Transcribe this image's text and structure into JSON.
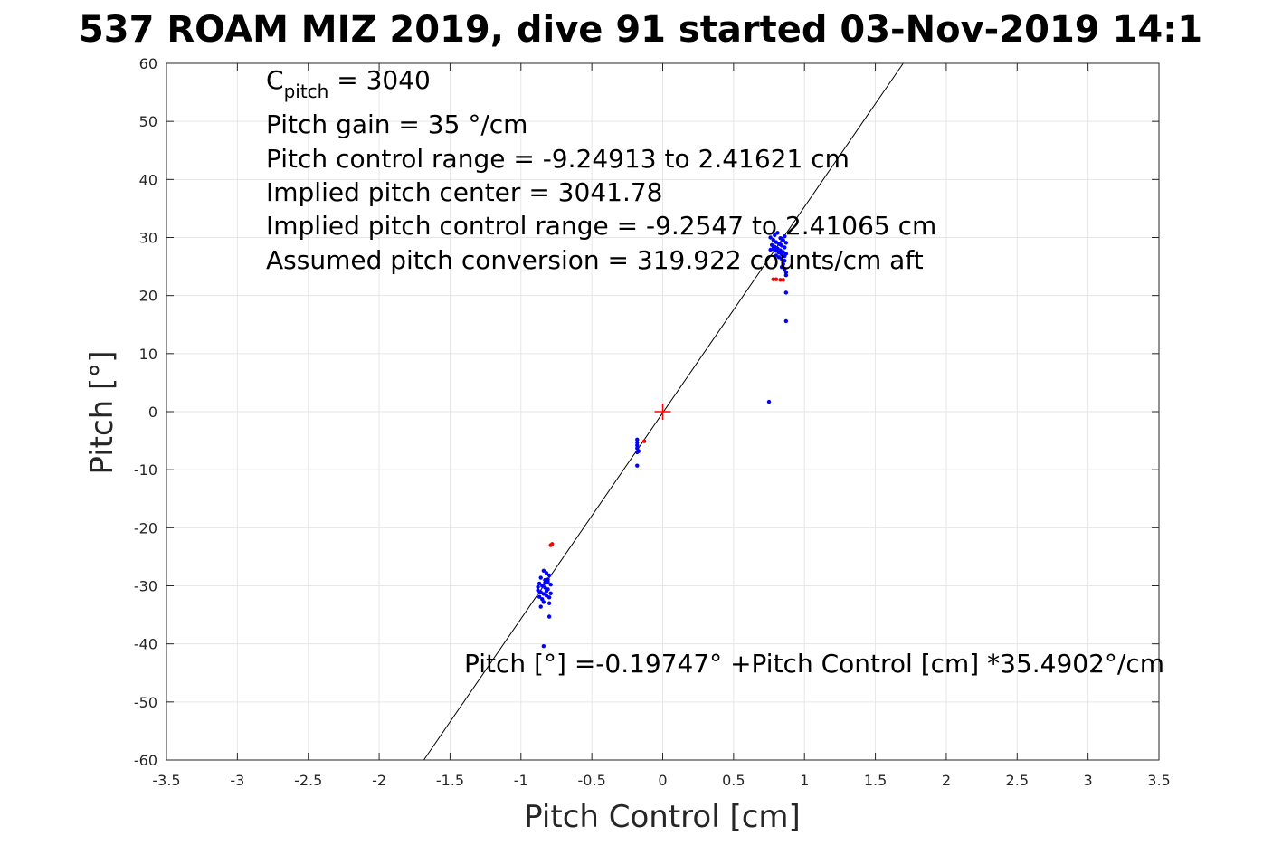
{
  "chart_data": {
    "type": "scatter",
    "title": "537 ROAM MIZ 2019, dive 91 started 03-Nov-2019 14:1",
    "xlabel": "Pitch Control [cm]",
    "ylabel": "Pitch [°]",
    "xlim": [
      -3.5,
      3.5
    ],
    "ylim": [
      -60,
      60
    ],
    "xticks": [
      -3.5,
      -3,
      -2.5,
      -2,
      -1.5,
      -1,
      -0.5,
      0,
      0.5,
      1,
      1.5,
      2,
      2.5,
      3,
      3.5
    ],
    "xtick_labels": [
      "-3.5",
      "-3",
      "-2.5",
      "-2",
      "-1.5",
      "-1",
      "-0.5",
      "0",
      "0.5",
      "1",
      "1.5",
      "2",
      "2.5",
      "3",
      "3.5"
    ],
    "yticks": [
      -60,
      -50,
      -40,
      -30,
      -20,
      -10,
      0,
      10,
      20,
      30,
      40,
      50,
      60
    ],
    "ytick_labels": [
      "-60",
      "-50",
      "-40",
      "-30",
      "-20",
      "-10",
      "0",
      "10",
      "20",
      "30",
      "40",
      "50",
      "60"
    ],
    "grid": true,
    "annotations": {
      "c_pitch_main": "C",
      "c_pitch_sub": "pitch",
      "c_pitch_value": " = 3040",
      "lines": [
        "Pitch gain = 35 °/cm",
        "Pitch control range = -9.24913 to 2.41621 cm",
        "Implied pitch center = 3041.78",
        "Implied pitch control range = -9.2547 to 2.41065 cm",
        "Assumed pitch conversion = 319.922 counts/cm aft"
      ],
      "fit_equation": "Pitch [°] =-0.19747° +Pitch Control [cm] *35.4902°/cm"
    },
    "fit_line": {
      "intercept": -0.19747,
      "slope": 35.4902,
      "color": "#000000"
    },
    "center_marker": {
      "x": 0,
      "y": 0,
      "color": "#ff0000",
      "shape": "plus"
    },
    "series": [
      {
        "color": "#0000ff",
        "points": [
          [
            0.76,
            30.0
          ],
          [
            0.78,
            29.6
          ],
          [
            0.8,
            29.2
          ],
          [
            0.82,
            28.9
          ],
          [
            0.84,
            28.6
          ],
          [
            0.86,
            28.3
          ],
          [
            0.78,
            28.0
          ],
          [
            0.8,
            27.7
          ],
          [
            0.82,
            27.4
          ],
          [
            0.84,
            27.1
          ],
          [
            0.86,
            26.8
          ],
          [
            0.79,
            30.4
          ],
          [
            0.81,
            30.8
          ],
          [
            0.83,
            29.9
          ],
          [
            0.85,
            29.5
          ],
          [
            0.87,
            29.1
          ],
          [
            0.77,
            28.7
          ],
          [
            0.79,
            28.4
          ],
          [
            0.81,
            28.1
          ],
          [
            0.83,
            27.8
          ],
          [
            0.85,
            27.5
          ],
          [
            0.87,
            27.2
          ],
          [
            0.8,
            26.9
          ],
          [
            0.82,
            26.6
          ],
          [
            0.84,
            26.3
          ],
          [
            0.86,
            26.0
          ],
          [
            0.85,
            25.4
          ],
          [
            0.86,
            24.6
          ],
          [
            0.87,
            24.0
          ],
          [
            0.84,
            24.9
          ],
          [
            0.87,
            23.5
          ],
          [
            0.87,
            20.5
          ],
          [
            0.87,
            15.6
          ],
          [
            0.75,
            1.7
          ],
          [
            0.78,
            28.5
          ],
          [
            0.8,
            28.2
          ],
          [
            0.84,
            29.8
          ],
          [
            0.86,
            30.2
          ],
          [
            0.76,
            27.9
          ],
          [
            0.83,
            28.8
          ],
          [
            -0.18,
            -4.8
          ],
          [
            -0.18,
            -5.3
          ],
          [
            -0.18,
            -5.8
          ],
          [
            -0.18,
            -6.3
          ],
          [
            -0.17,
            -6.8
          ],
          [
            -0.18,
            -7.0
          ],
          [
            -0.18,
            -9.3
          ],
          [
            -0.84,
            -27.4
          ],
          [
            -0.82,
            -27.8
          ],
          [
            -0.8,
            -28.2
          ],
          [
            -0.86,
            -28.6
          ],
          [
            -0.83,
            -29.0
          ],
          [
            -0.81,
            -29.3
          ],
          [
            -0.87,
            -29.6
          ],
          [
            -0.85,
            -30.0
          ],
          [
            -0.83,
            -30.3
          ],
          [
            -0.81,
            -30.6
          ],
          [
            -0.88,
            -30.8
          ],
          [
            -0.86,
            -31.1
          ],
          [
            -0.84,
            -31.4
          ],
          [
            -0.82,
            -31.7
          ],
          [
            -0.8,
            -32.0
          ],
          [
            -0.85,
            -32.3
          ],
          [
            -0.83,
            -29.5
          ],
          [
            -0.81,
            -28.9
          ],
          [
            -0.79,
            -29.8
          ],
          [
            -0.87,
            -31.9
          ],
          [
            -0.84,
            -32.8
          ],
          [
            -0.86,
            -33.6
          ],
          [
            -0.8,
            -33.0
          ],
          [
            -0.8,
            -35.3
          ],
          [
            -0.84,
            -40.4
          ],
          [
            -0.82,
            -30.9
          ],
          [
            -0.88,
            -30.2
          ],
          [
            -0.79,
            -31.3
          ]
        ]
      },
      {
        "color": "#ff0000",
        "points": [
          [
            0.78,
            22.8
          ],
          [
            0.8,
            22.8
          ],
          [
            0.83,
            22.7
          ],
          [
            0.85,
            22.7
          ],
          [
            -0.78,
            -22.8
          ],
          [
            -0.79,
            -23.0
          ],
          [
            -0.13,
            -5.1
          ]
        ]
      }
    ]
  }
}
